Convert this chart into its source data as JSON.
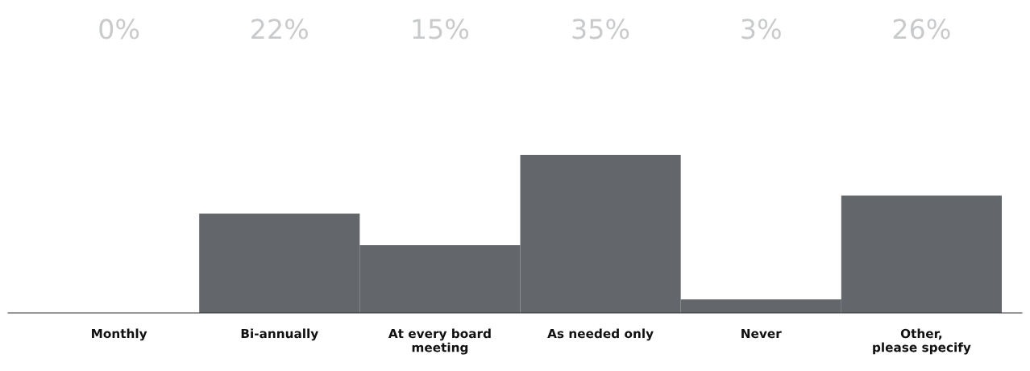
{
  "chart_data": {
    "type": "bar",
    "categories": [
      "Monthly",
      "Bi-annually",
      "At every board\nmeeting",
      "As needed only",
      "Never",
      "Other,\nplease specify"
    ],
    "values": [
      0,
      22,
      15,
      35,
      3,
      26
    ],
    "value_labels": [
      "0%",
      "22%",
      "15%",
      "35%",
      "3%",
      "26%"
    ],
    "color": "#63666a",
    "grid": false,
    "legend": false
  }
}
